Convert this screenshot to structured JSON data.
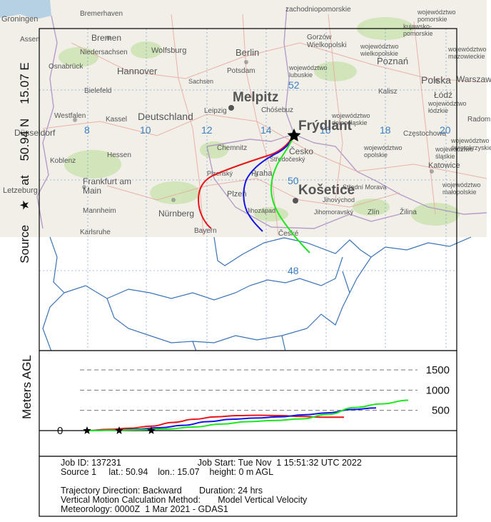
{
  "map": {
    "source_label": {
      "source": "Source",
      "at": "at",
      "lat": "50.94 N",
      "lon": "15.07 E"
    },
    "lat_labels": [
      "52",
      "50",
      "48"
    ],
    "lon_labels": [
      "8",
      "10",
      "12",
      "14",
      "16",
      "18",
      "20"
    ],
    "places": {
      "melpitz": "Melpitz",
      "frydlant": "Frýdlant",
      "kosetice": "Košetice"
    },
    "basemap_labels": {
      "groningen": "Groningen",
      "bremerhaven": "Bremerhaven",
      "bremen": "Bremen",
      "niedersachsen": "Niedersachsen",
      "wolfsburg": "Wolfsburg",
      "hannover": "Hannover",
      "osnabruck": "Osnabrück",
      "bielefeld": "Bielefeld",
      "assen": "Assen",
      "berlin": "Berlin",
      "potsdam": "Potsdam",
      "gorzow": "Gorzów\nWielkopolski",
      "poznan": "Poznań",
      "polska": "Polska",
      "warszawa": "Warszaw",
      "kalisz": "Kalisz",
      "lodz": "Łódź",
      "radom": "Radom",
      "czestochowa": "Częstochowa",
      "katowice": "Katowice",
      "zilina": "Žilina",
      "zlin": "Zlín",
      "praha": "Praha",
      "plzen": "Plzeň",
      "nurnberg": "Nürnberg",
      "frankfurt": "Frankfurt am\nMain",
      "mannheim": "Mannheim",
      "karlsruhe": "Karlsruhe",
      "koblenz": "Koblenz",
      "hessen": "Hessen",
      "kassel": "Kassel",
      "deutschland": "Deutschland",
      "leipzig": "Leipzig",
      "chemnitz": "Chemnitz",
      "bayern": "Bayern",
      "westfalen": "Westfalen",
      "dusseldorf": "Düsseldorf",
      "luxembourg": "Letzeburg",
      "sachsen": "Sachsen",
      "cottbus": "Chóśebuz",
      "jihomoravsky": "Jihomoravský",
      "ceske": "České",
      "cesko": "Česko",
      "zachodniopomorskie": "zachodniopomorskie",
      "kujawsko": "kujawsko-\npomorskie",
      "wielkopolskie": "województwo\nwielkopolskie",
      "lubuskie": "województwo\nlubuskie",
      "dolnoslaskie": "województwo\ndolnośląskie",
      "opolskie": "województwo\nopolskie",
      "slaskie": "województwo\nśląskie",
      "lodzkie": "województwo\nłódzkie",
      "swietokrzyskie": "województwo\nświętokrzyskie",
      "malopolskie": "województwo\nmałopolskie",
      "pomorskie": "województwo\npomorskie",
      "mazowieckie": "województwo\nmazowieckie",
      "plzensky": "Plzeňský",
      "stredni": "Střední Morava",
      "jihovychod": "Jihovýchod",
      "stredocesky": "Středočeský",
      "zapad": "Jihozápad"
    }
  },
  "chart_data": {
    "type": "line",
    "title": "",
    "xlabel": "",
    "ylabel": "Meters AGL",
    "ylim": [
      0,
      1500
    ],
    "ytick_labels": [
      "0",
      "500",
      "1000",
      "1500"
    ],
    "y_ticks": [
      0,
      500,
      1000,
      1500
    ],
    "grid": "dashed",
    "series": [
      {
        "color": "#e8141a",
        "values": [
          {
            "h": 0,
            "agl": 0
          },
          {
            "h": 2,
            "agl": 30
          },
          {
            "h": 4,
            "agl": 60
          },
          {
            "h": 6,
            "agl": 110
          },
          {
            "h": 8,
            "agl": 200
          },
          {
            "h": 10,
            "agl": 280
          },
          {
            "h": 12,
            "agl": 340
          },
          {
            "h": 14,
            "agl": 370
          },
          {
            "h": 16,
            "agl": 380
          },
          {
            "h": 18,
            "agl": 370
          },
          {
            "h": 20,
            "agl": 350
          },
          {
            "h": 22,
            "agl": 330
          },
          {
            "h": 24,
            "agl": 330
          }
        ]
      },
      {
        "color": "#1414e6",
        "values": [
          {
            "h": 0,
            "agl": 0
          },
          {
            "h": 2,
            "agl": 10
          },
          {
            "h": 4,
            "agl": 30
          },
          {
            "h": 6,
            "agl": 70
          },
          {
            "h": 8,
            "agl": 130
          },
          {
            "h": 10,
            "agl": 220
          },
          {
            "h": 12,
            "agl": 280
          },
          {
            "h": 14,
            "agl": 310
          },
          {
            "h": 16,
            "agl": 340
          },
          {
            "h": 18,
            "agl": 390
          },
          {
            "h": 20,
            "agl": 440
          },
          {
            "h": 22,
            "agl": 520
          },
          {
            "h": 24,
            "agl": 560
          }
        ]
      },
      {
        "color": "#1ee61e",
        "values": [
          {
            "h": 0,
            "agl": 0
          },
          {
            "h": 2,
            "agl": 10
          },
          {
            "h": 4,
            "agl": 20
          },
          {
            "h": 6,
            "agl": 40
          },
          {
            "h": 8,
            "agl": 90
          },
          {
            "h": 10,
            "agl": 160
          },
          {
            "h": 12,
            "agl": 220
          },
          {
            "h": 14,
            "agl": 250
          },
          {
            "h": 16,
            "agl": 290
          },
          {
            "h": 18,
            "agl": 400
          },
          {
            "h": 20,
            "agl": 570
          },
          {
            "h": 22,
            "agl": 660
          },
          {
            "h": 24,
            "agl": 750
          }
        ]
      }
    ]
  },
  "info": {
    "line1a": "Job ID: 137231",
    "line1b": "Job Start: Tue Nov  1 15:51:32 UTC 2022",
    "line2": "Source 1     lat.: 50.94    lon.: 15.07    height: 0 m AGL",
    "line3": "Trajectory Direction: Backward       Duration: 24 hrs",
    "line4": "Vertical Motion Calculation Method:       Model Vertical Velocity",
    "line5": "Meteorology: 0000Z  1 Mar 2021 - GDAS1"
  },
  "colors": {
    "red": "#e8141a",
    "blue": "#1414e6",
    "green": "#1ee61e",
    "grid_label": "#3a7fc4",
    "border": "#3a74b8"
  }
}
